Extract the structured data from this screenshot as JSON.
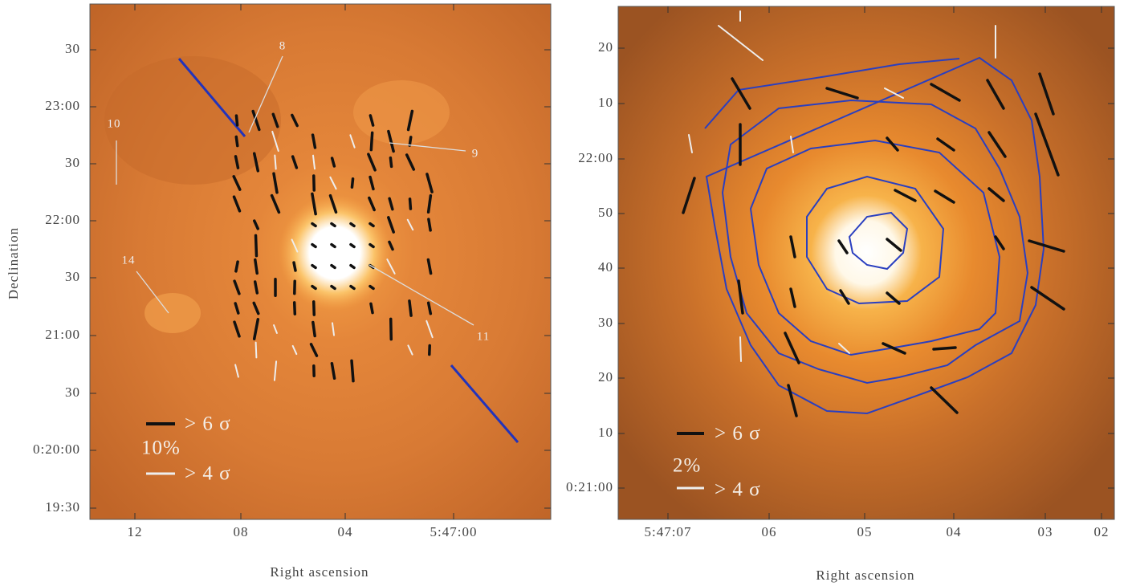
{
  "panels": [
    {
      "x_ticks": [
        "12",
        "08",
        "04",
        "5:47:00"
      ],
      "y_ticks": [
        "30",
        "23:00",
        "30",
        "22:00",
        "30",
        "21:00",
        "30",
        "0:20:00",
        "19:30"
      ],
      "x_label": "Right ascension",
      "y_label": "Declination",
      "annotations": [
        "8",
        "9",
        "10",
        "11",
        "14"
      ],
      "legend": {
        "high": "> 6 σ",
        "scale": "10%",
        "low": "> 4 σ"
      }
    },
    {
      "x_ticks": [
        "5:47:07",
        "06",
        "05",
        "04",
        "03",
        "02"
      ],
      "y_ticks": [
        "20",
        "10",
        "22:00",
        "50",
        "40",
        "30",
        "20",
        "10",
        "0:21:00"
      ],
      "x_label": "Right ascension",
      "legend": {
        "high": "> 6 σ",
        "scale": "2%",
        "low": "> 4 σ"
      }
    }
  ]
}
